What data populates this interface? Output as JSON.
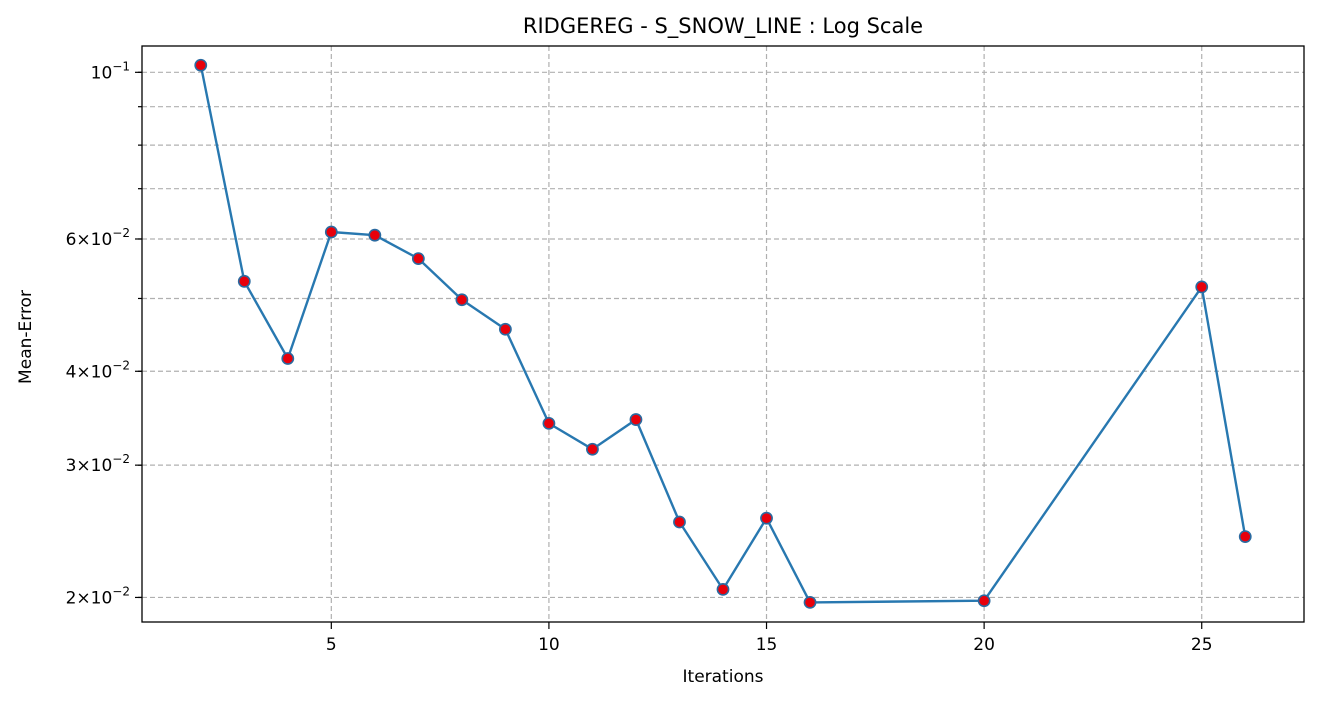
{
  "chart_data": {
    "type": "line",
    "title": "RIDGEREG - S_SNOW_LINE : Log Scale",
    "xlabel": "Iterations",
    "ylabel": "Mean-Error",
    "yscale": "log",
    "xlim": [
      0.65,
      27.35
    ],
    "ylim": [
      0.01855,
      0.1084
    ],
    "xticks": [
      5,
      10,
      15,
      20,
      25
    ],
    "yticks_major": [
      {
        "value": 0.1,
        "mantissa": "",
        "base": "10",
        "exp": "−1"
      },
      {
        "value": 0.06,
        "mantissa": "6",
        "base": "10",
        "exp": "−2"
      },
      {
        "value": 0.04,
        "mantissa": "4",
        "base": "10",
        "exp": "−2"
      },
      {
        "value": 0.03,
        "mantissa": "3",
        "base": "10",
        "exp": "−2"
      },
      {
        "value": 0.02,
        "mantissa": "2",
        "base": "10",
        "exp": "−2"
      }
    ],
    "y_gridlines": [
      0.1,
      0.09,
      0.08,
      0.07,
      0.06,
      0.05,
      0.04,
      0.03,
      0.02
    ],
    "grid": true,
    "line_color": "#2878b0",
    "marker_face": "#e8000b",
    "marker_edge": "#2a6aa0",
    "series": [
      {
        "x": [
          2,
          3,
          4,
          5,
          6,
          7,
          8,
          9,
          10,
          11,
          12,
          13,
          14,
          15,
          16,
          20,
          25,
          26
        ],
        "y": [
          0.1022,
          0.0527,
          0.0416,
          0.0613,
          0.0607,
          0.0565,
          0.0498,
          0.0455,
          0.0341,
          0.0315,
          0.0345,
          0.0252,
          0.0205,
          0.0255,
          0.0197,
          0.0198,
          0.0518,
          0.0241
        ]
      }
    ]
  }
}
